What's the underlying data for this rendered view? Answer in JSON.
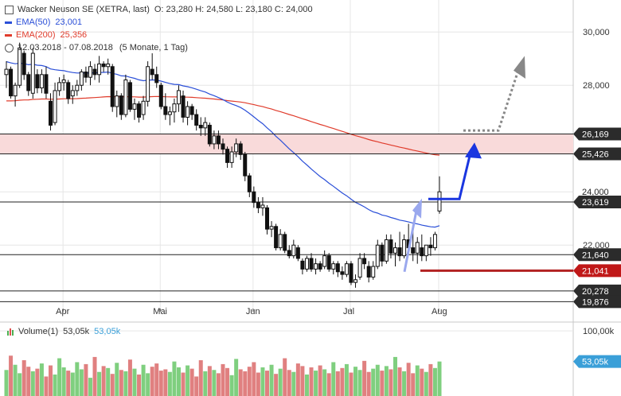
{
  "header": {
    "title": "Wacker Neuson SE (XETRA, last)",
    "ohlc": "O: 23,280  H: 24,580  L: 23,180  C: 24,000",
    "ema50_label": "EMA(50)",
    "ema50_value": "23,001",
    "ema200_label": "EMA(200)",
    "ema200_value": "25,356",
    "range_label": "12.03.2018 - 07.08.2018",
    "period_label": "(5 Monate, 1 Tag)"
  },
  "volume_legend": {
    "label": "Volume(1)",
    "value1": "53,05k",
    "value2": "53,05k"
  },
  "colors": {
    "up": "#7fcf7f",
    "down": "#e08080",
    "ema50": "#2b4fd8",
    "ema200": "#e03c2c",
    "zone": "#f9dada",
    "arrow_blue": "#1a36e0",
    "arrow_light": "#9aa8ee",
    "support_red": "#b22222",
    "badge_dark": "#2b2b2b",
    "badge_red": "#c01818",
    "badge_blue": "#3a9fd8"
  },
  "chart_data": {
    "type": "candlestick",
    "title": "Wacker Neuson SE (XETRA, last)",
    "x_ticks": [
      "Apr",
      "Mai",
      "Jun",
      "Jul",
      "Aug"
    ],
    "y_ticks": [
      "30,000",
      "28,000",
      "24,000",
      "22,000"
    ],
    "ylim": [
      19.5,
      31.2
    ],
    "levels": [
      {
        "value": 26.169,
        "label": "26,169",
        "style": "dark"
      },
      {
        "value": 25.426,
        "label": "25,426",
        "style": "dark"
      },
      {
        "value": 23.619,
        "label": "23,619",
        "style": "dark"
      },
      {
        "value": 21.64,
        "label": "21,640",
        "style": "dark"
      },
      {
        "value": 21.041,
        "label": "21,041",
        "style": "red"
      },
      {
        "value": 20.278,
        "label": "20,278",
        "style": "dark"
      },
      {
        "value": 19.876,
        "label": "19,876",
        "style": "dark"
      }
    ],
    "resistance_zone": [
      25.426,
      26.169
    ],
    "current_price": {
      "value": 24.0,
      "label": "24,000"
    },
    "volume_ticks": [
      "100,00k"
    ],
    "volume_badge": "53,05k",
    "ohlc": [
      [
        28.4,
        28.9,
        27.9,
        28.6
      ],
      [
        28.6,
        28.7,
        27.5,
        27.6
      ],
      [
        27.6,
        28.1,
        27.2,
        28.0
      ],
      [
        28.0,
        29.6,
        27.9,
        29.4
      ],
      [
        29.2,
        29.3,
        28.2,
        28.4
      ],
      [
        28.4,
        28.5,
        27.6,
        27.8
      ],
      [
        27.7,
        29.4,
        27.5,
        29.2
      ],
      [
        28.4,
        28.6,
        27.7,
        27.9
      ],
      [
        27.9,
        28.6,
        27.7,
        28.4
      ],
      [
        28.4,
        28.7,
        27.5,
        27.7
      ],
      [
        27.4,
        27.7,
        26.3,
        26.5
      ],
      [
        26.6,
        28.1,
        26.5,
        27.8
      ],
      [
        27.8,
        28.3,
        27.6,
        28.1
      ],
      [
        28.1,
        28.4,
        27.8,
        28.2
      ],
      [
        28.1,
        28.2,
        27.3,
        27.5
      ],
      [
        27.6,
        28.0,
        27.3,
        27.8
      ],
      [
        27.8,
        28.2,
        27.6,
        28.0
      ],
      [
        28.0,
        28.6,
        27.8,
        28.5
      ],
      [
        28.5,
        28.7,
        28.1,
        28.3
      ],
      [
        28.3,
        28.9,
        28.0,
        28.7
      ],
      [
        28.6,
        28.8,
        28.2,
        28.4
      ],
      [
        28.4,
        29.1,
        28.1,
        28.8
      ],
      [
        28.8,
        28.9,
        28.5,
        28.7
      ],
      [
        28.7,
        29.0,
        28.4,
        28.8
      ],
      [
        28.7,
        28.8,
        27.0,
        27.2
      ],
      [
        27.2,
        27.8,
        26.8,
        27.6
      ],
      [
        27.6,
        27.7,
        26.7,
        26.9
      ],
      [
        26.9,
        28.4,
        26.8,
        28.2
      ],
      [
        28.1,
        28.2,
        27.0,
        27.1
      ],
      [
        27.1,
        27.5,
        26.7,
        27.3
      ],
      [
        27.3,
        27.4,
        26.6,
        26.8
      ],
      [
        26.9,
        27.6,
        26.7,
        27.4
      ],
      [
        27.4,
        28.9,
        27.2,
        28.7
      ],
      [
        28.6,
        29.2,
        28.2,
        28.4
      ],
      [
        28.4,
        28.7,
        27.9,
        28.1
      ],
      [
        28.0,
        28.1,
        27.1,
        27.2
      ],
      [
        27.2,
        27.7,
        26.7,
        26.9
      ],
      [
        26.9,
        27.2,
        26.5,
        27.0
      ],
      [
        27.0,
        27.5,
        26.6,
        27.3
      ],
      [
        27.3,
        28.0,
        27.0,
        27.8
      ],
      [
        27.6,
        27.8,
        26.6,
        26.8
      ],
      [
        26.8,
        27.4,
        26.5,
        27.2
      ],
      [
        27.2,
        27.3,
        26.7,
        26.9
      ],
      [
        26.9,
        27.1,
        26.3,
        26.5
      ],
      [
        26.5,
        26.8,
        26.1,
        26.4
      ],
      [
        26.4,
        26.8,
        26.1,
        26.6
      ],
      [
        26.5,
        26.6,
        25.7,
        25.8
      ],
      [
        25.8,
        26.3,
        25.6,
        26.1
      ],
      [
        26.1,
        26.3,
        25.6,
        25.8
      ],
      [
        25.8,
        26.0,
        25.4,
        25.6
      ],
      [
        25.6,
        25.7,
        24.9,
        25.1
      ],
      [
        25.1,
        25.7,
        24.9,
        25.5
      ],
      [
        25.5,
        26.0,
        25.3,
        25.8
      ],
      [
        25.8,
        25.9,
        25.2,
        25.4
      ],
      [
        25.4,
        25.5,
        24.4,
        24.6
      ],
      [
        24.6,
        24.7,
        23.8,
        24.0
      ],
      [
        24.0,
        24.2,
        23.4,
        23.6
      ],
      [
        23.6,
        23.8,
        23.2,
        23.4
      ],
      [
        23.4,
        23.8,
        23.1,
        23.5
      ],
      [
        23.4,
        23.5,
        22.4,
        22.6
      ],
      [
        22.6,
        22.9,
        22.3,
        22.7
      ],
      [
        22.7,
        22.8,
        21.8,
        21.9
      ],
      [
        21.9,
        22.6,
        21.8,
        22.4
      ],
      [
        22.4,
        22.5,
        21.7,
        21.8
      ],
      [
        21.8,
        22.0,
        21.5,
        21.6
      ],
      [
        21.6,
        22.2,
        21.5,
        22.0
      ],
      [
        21.9,
        22.0,
        21.4,
        21.5
      ],
      [
        21.4,
        21.5,
        20.9,
        21.1
      ],
      [
        21.1,
        21.6,
        21.0,
        21.5
      ],
      [
        21.5,
        21.7,
        21.0,
        21.1
      ],
      [
        21.1,
        21.5,
        20.9,
        21.3
      ],
      [
        21.3,
        21.4,
        21.0,
        21.1
      ],
      [
        21.2,
        21.8,
        21.1,
        21.6
      ],
      [
        21.6,
        21.7,
        21.0,
        21.1
      ],
      [
        21.1,
        21.4,
        20.9,
        21.3
      ],
      [
        21.3,
        21.4,
        20.8,
        21.0
      ],
      [
        21.0,
        21.2,
        20.7,
        20.9
      ],
      [
        20.9,
        21.4,
        20.8,
        21.3
      ],
      [
        21.3,
        21.4,
        20.5,
        20.6
      ],
      [
        20.6,
        20.9,
        20.4,
        20.7
      ],
      [
        20.8,
        21.7,
        20.7,
        21.5
      ],
      [
        21.5,
        21.7,
        21.1,
        21.3
      ],
      [
        21.2,
        21.4,
        20.6,
        20.8
      ],
      [
        20.8,
        21.4,
        20.7,
        21.2
      ],
      [
        21.2,
        22.2,
        21.1,
        22.0
      ],
      [
        22.0,
        22.1,
        21.2,
        21.4
      ],
      [
        21.4,
        22.4,
        21.3,
        22.2
      ],
      [
        22.2,
        22.4,
        21.5,
        21.7
      ],
      [
        21.7,
        22.1,
        21.2,
        21.9
      ],
      [
        21.9,
        22.5,
        21.4,
        21.6
      ],
      [
        21.6,
        22.4,
        21.5,
        22.2
      ],
      [
        22.2,
        22.8,
        21.7,
        21.9
      ],
      [
        21.9,
        22.6,
        21.4,
        21.7
      ],
      [
        21.7,
        22.3,
        21.3,
        22.1
      ],
      [
        21.9,
        22.4,
        21.4,
        21.6
      ],
      [
        21.6,
        22.0,
        21.4,
        22.0
      ],
      [
        22.0,
        22.3,
        21.6,
        21.9
      ],
      [
        21.9,
        22.5,
        21.8,
        22.4
      ],
      [
        23.28,
        24.58,
        23.18,
        24.0
      ]
    ],
    "volume": [
      40,
      62,
      48,
      35,
      55,
      45,
      38,
      42,
      50,
      30,
      47,
      33,
      58,
      44,
      39,
      36,
      52,
      41,
      49,
      28,
      60,
      37,
      46,
      43,
      34,
      51,
      40,
      38,
      56,
      42,
      33,
      48,
      35,
      45,
      50,
      39,
      41,
      37,
      53,
      44,
      36,
      47,
      42,
      30,
      55,
      38,
      46,
      40,
      35,
      49,
      43,
      32,
      57,
      41,
      38,
      45,
      52,
      36,
      44,
      39,
      48,
      34,
      42,
      58,
      40,
      37,
      50,
      46,
      33,
      44,
      39,
      47,
      41,
      35,
      52,
      38,
      43,
      49,
      36,
      45,
      40,
      54,
      37,
      42,
      48,
      39,
      46,
      41,
      60,
      44,
      38,
      51,
      35,
      47,
      42,
      37,
      49,
      43,
      53
    ]
  }
}
